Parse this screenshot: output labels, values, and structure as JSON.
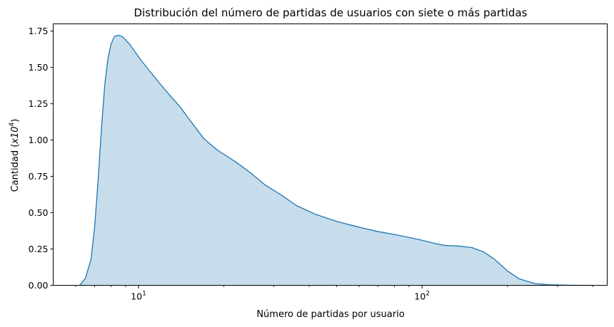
{
  "chart_data": {
    "type": "area",
    "title": "Distribución del número de partidas de usuarios con siete o más partidas",
    "xlabel": "Número de partidas por usuario",
    "ylabel": {
      "prefix": "Cantidad (",
      "base": "x10",
      "exponent": "4",
      "suffix": ")"
    },
    "xscale": "log",
    "xlim": [
      5.0,
      450
    ],
    "ylim": [
      0,
      1.8
    ],
    "grid": false,
    "yticks": [
      0.0,
      0.25,
      0.5,
      0.75,
      1.0,
      1.25,
      1.5,
      1.75
    ],
    "ytick_labels": [
      "0.00",
      "0.25",
      "0.50",
      "0.75",
      "1.00",
      "1.25",
      "1.50",
      "1.75"
    ],
    "xticks_major": [
      {
        "value": 10,
        "base": "10",
        "exponent": "1"
      },
      {
        "value": 100,
        "base": "10",
        "exponent": "2"
      }
    ],
    "xticks_minor": [
      6,
      7,
      8,
      9,
      20,
      30,
      40,
      50,
      60,
      70,
      80,
      90,
      200,
      300,
      400
    ],
    "series": [
      {
        "color": "#1f77b4",
        "fill_color": "#1f77b4",
        "fill_opacity": 0.25,
        "x": [
          6.2,
          6.5,
          6.8,
          7.0,
          7.2,
          7.4,
          7.6,
          7.8,
          8.0,
          8.2,
          8.4,
          8.6,
          8.8,
          9.0,
          9.3,
          9.7,
          10.2,
          11,
          12,
          13,
          14,
          15,
          17,
          19,
          22,
          25,
          28,
          32,
          36,
          42,
          50,
          60,
          70,
          80,
          90,
          100,
          110,
          120,
          135,
          150,
          165,
          180,
          200,
          220,
          250,
          280,
          320,
          360,
          400
        ],
        "y": [
          0.0,
          0.05,
          0.18,
          0.4,
          0.72,
          1.08,
          1.38,
          1.56,
          1.66,
          1.71,
          1.72,
          1.72,
          1.71,
          1.69,
          1.66,
          1.61,
          1.55,
          1.47,
          1.38,
          1.3,
          1.23,
          1.15,
          1.01,
          0.93,
          0.85,
          0.77,
          0.69,
          0.62,
          0.55,
          0.49,
          0.44,
          0.4,
          0.37,
          0.35,
          0.33,
          0.31,
          0.29,
          0.275,
          0.27,
          0.26,
          0.23,
          0.18,
          0.1,
          0.045,
          0.012,
          0.004,
          0.001,
          0.0,
          0.0
        ]
      }
    ]
  }
}
